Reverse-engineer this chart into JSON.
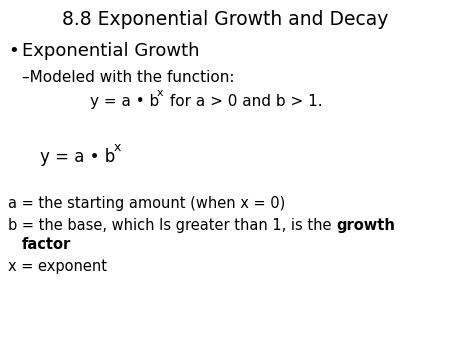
{
  "title": "8.8 Exponential Growth and Decay",
  "bg_color": "#ffffff",
  "text_color": "#000000",
  "title_fontsize": 13.5,
  "bullet_fontsize": 13,
  "dash_fontsize": 11,
  "formula1_fontsize": 11,
  "formula1_sup_fontsize": 8,
  "formula2_fontsize": 12,
  "formula2_sup_fontsize": 9,
  "def_fontsize": 10.5,
  "bullet_char": "•",
  "bullet_text": "Exponential Growth",
  "dash_text": "–Modeled with the function:",
  "f1_pre": "y = a • b",
  "f1_sup": "x",
  "f1_post": " for a > 0 and b > 1.",
  "f2_pre": "y = a • b",
  "f2_sup": "x",
  "def_a": "a = the starting amount (when x = 0)",
  "def_b_pre": "b = the base, which Is greater than 1, is the ",
  "def_b_bold": "growth",
  "def_b2_bold": "factor",
  "def_x": "x = exponent"
}
